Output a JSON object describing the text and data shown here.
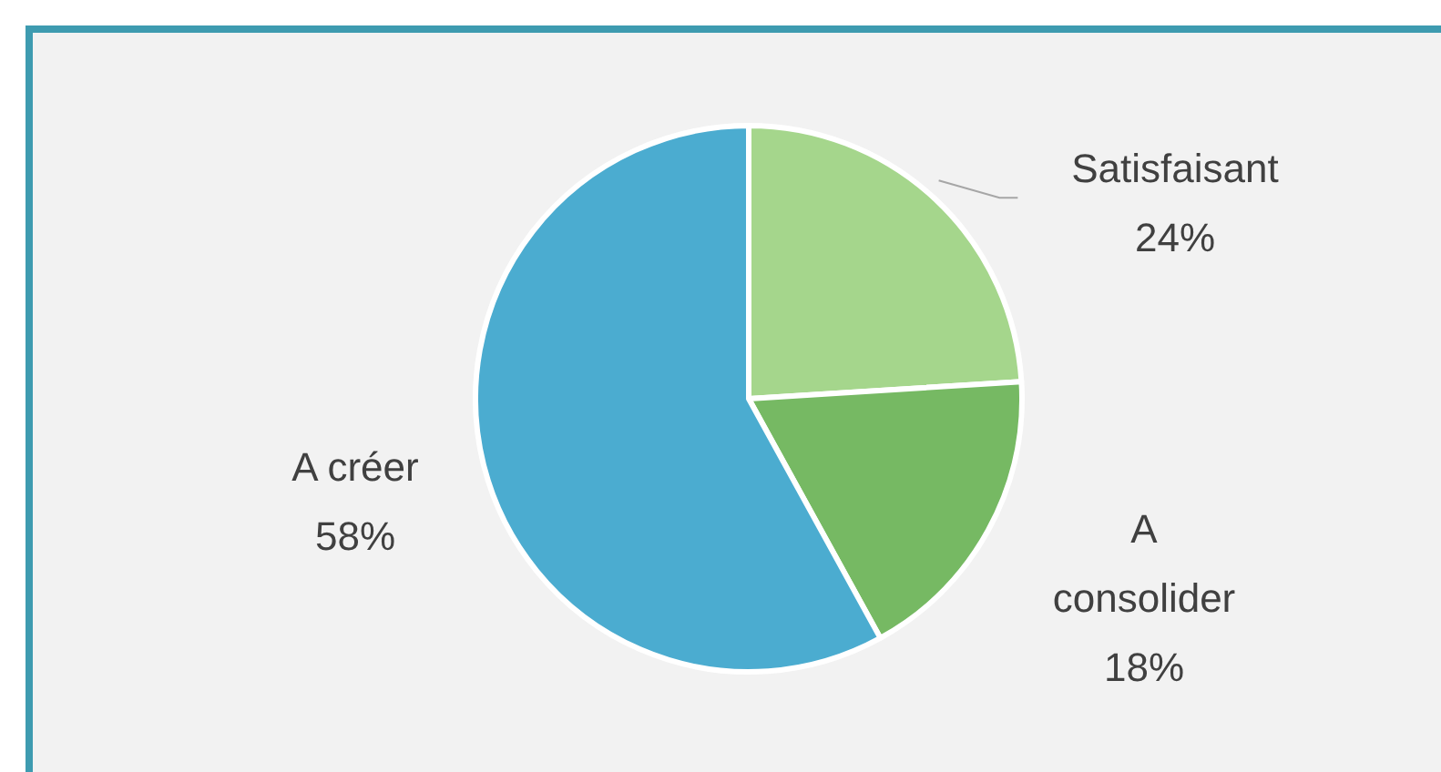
{
  "chart_data": {
    "type": "pie",
    "categories": [
      "Satisfaisant",
      "A consolider",
      "A créer"
    ],
    "values": [
      24,
      18,
      58
    ],
    "colors": [
      "#a5d68c",
      "#76b963",
      "#4bacd0"
    ],
    "value_labels": [
      "24%",
      "18%",
      "58%"
    ]
  }
}
